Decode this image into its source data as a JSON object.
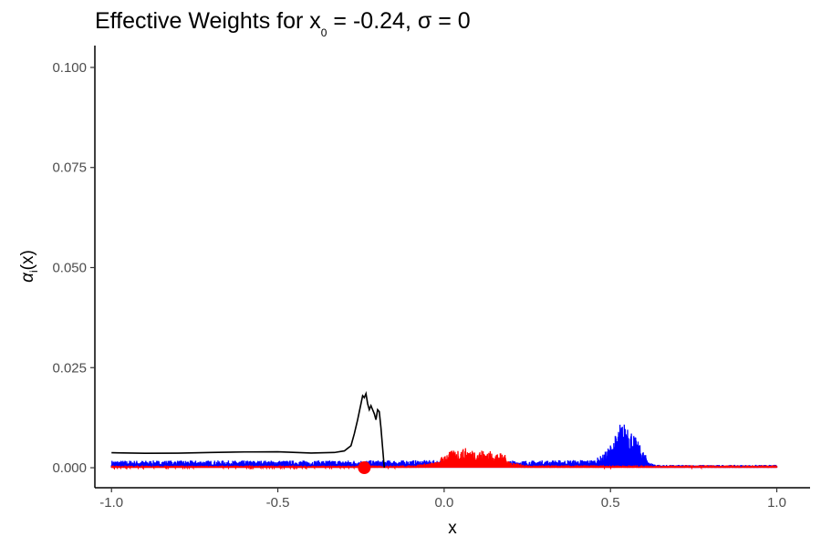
{
  "chart_data": {
    "type": "line",
    "title": {
      "prefix": "Effective Weights for x",
      "subscript": "0",
      "suffix": " = -0.24, σ = 0"
    },
    "xlabel": "x",
    "ylabel": {
      "base": "α",
      "subscript": "i",
      "suffix": "(x)"
    },
    "xlim": [
      -1.05,
      1.1
    ],
    "ylim": [
      -0.005,
      0.105
    ],
    "x_ticks": [
      -1.0,
      -0.5,
      0.0,
      0.5,
      1.0
    ],
    "x_tick_labels": [
      "-1.0",
      "-0.5",
      "0.0",
      "0.5",
      "1.0"
    ],
    "y_ticks": [
      0.0,
      0.025,
      0.05,
      0.075,
      0.1
    ],
    "y_tick_labels": [
      "0.000",
      "0.025",
      "0.050",
      "0.075",
      "0.100"
    ],
    "grid": false,
    "legend": "none",
    "point": {
      "x": -0.24,
      "y": 0.0,
      "color": "#ff0000"
    },
    "series": [
      {
        "color": "#0000ff",
        "style": "spiky-line",
        "x": [
          -1.0,
          -0.5,
          0.0,
          0.25,
          0.45,
          0.48,
          0.5,
          0.52,
          0.53,
          0.54,
          0.55,
          0.56,
          0.58,
          0.6,
          0.62,
          0.65,
          0.8,
          1.0
        ],
        "y": [
          0.0018,
          0.0018,
          0.0019,
          0.0018,
          0.002,
          0.0035,
          0.006,
          0.009,
          0.0115,
          0.011,
          0.0125,
          0.01,
          0.007,
          0.004,
          0.0012,
          0.0007,
          0.0007,
          0.0007
        ]
      },
      {
        "color": "#ff0000",
        "style": "spiky-line",
        "x": [
          -1.0,
          -0.3,
          -0.1,
          -0.02,
          0.0,
          0.03,
          0.06,
          0.09,
          0.12,
          0.15,
          0.18,
          0.2,
          0.25,
          0.5,
          1.0
        ],
        "y": [
          0.0005,
          0.0005,
          0.0006,
          0.0015,
          0.0035,
          0.0045,
          0.005,
          0.0045,
          0.0045,
          0.004,
          0.0035,
          0.0015,
          0.0006,
          0.0006,
          0.0006
        ]
      },
      {
        "color": "#000000",
        "style": "line",
        "x": [
          -1.0,
          -0.9,
          -0.8,
          -0.7,
          -0.6,
          -0.5,
          -0.4,
          -0.33,
          -0.3,
          -0.28,
          -0.27,
          -0.26,
          -0.25,
          -0.245,
          -0.24,
          -0.235,
          -0.23,
          -0.225,
          -0.22,
          -0.215,
          -0.21,
          -0.205,
          -0.2,
          -0.195,
          -0.19,
          -0.185,
          -0.18
        ],
        "y": [
          0.0038,
          0.0038,
          0.0038,
          0.0039,
          0.0038,
          0.0039,
          0.0038,
          0.0038,
          0.0042,
          0.0055,
          0.0085,
          0.012,
          0.016,
          0.018,
          0.0175,
          0.0185,
          0.016,
          0.0145,
          0.0155,
          0.0145,
          0.0135,
          0.012,
          0.0145,
          0.014,
          0.01,
          0.005,
          0.0
        ]
      }
    ]
  }
}
